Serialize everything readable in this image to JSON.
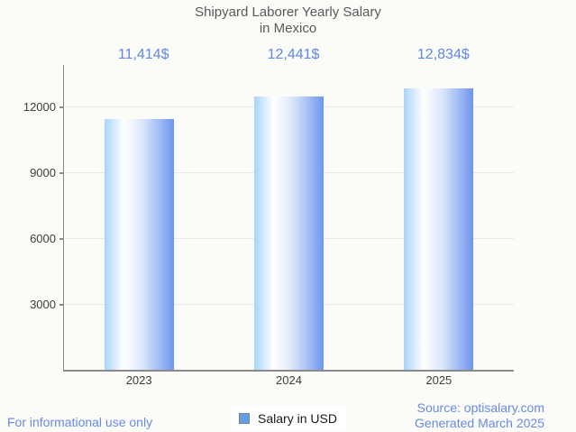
{
  "chart_data": {
    "type": "bar",
    "title": "Shipyard Laborer Yearly Salary in Mexico",
    "title_lines": [
      "Shipyard Laborer Yearly Salary",
      "in Mexico"
    ],
    "categories": [
      "2023",
      "2024",
      "2025"
    ],
    "series": [
      {
        "name": "Salary in USD",
        "values": [
          11414,
          12441,
          12834
        ]
      }
    ],
    "value_labels": [
      "11,414$",
      "12,441$",
      "12,834$"
    ],
    "xlabel": "",
    "ylabel": "",
    "ylim": [
      0,
      13900
    ],
    "yticks": [
      3000,
      6000,
      9000,
      12000
    ],
    "grid": true,
    "legend_position": "bottom"
  },
  "legend": {
    "label": "Salary in USD"
  },
  "footer": {
    "left": "For informational use only",
    "source": "Source: optisalary.com",
    "generated": "Generated March 2025"
  },
  "colors": {
    "background": "#fbfbf7",
    "title_text": "#58595b",
    "value_label_text": "#5f87e6",
    "axis_line": "#8a8a8a",
    "gridline": "#e8e8e8",
    "tick_label_text": "#3d3d3d",
    "bar_gradient_left": "#a9d4fb",
    "bar_gradient_middle": "#ffffff",
    "bar_gradient_right": "#6e96ee",
    "legend_marker_fill": "#61a0e8",
    "legend_marker_border": "#7f7f7f",
    "legend_text": "#1a1a1a",
    "footer_text": "#6889e8"
  }
}
